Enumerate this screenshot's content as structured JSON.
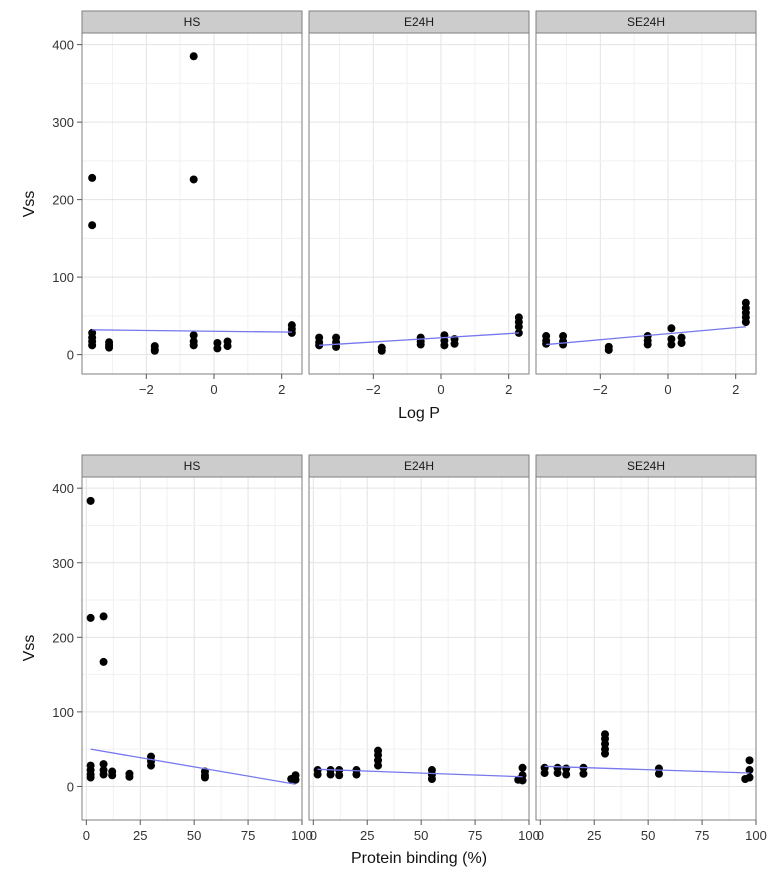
{
  "chart_data": [
    {
      "type": "scatter",
      "title": "",
      "xlabel": "Log P",
      "ylabel": "Vss",
      "xlim": [
        -3.9,
        2.6
      ],
      "ylim": [
        -25,
        415
      ],
      "x_ticks": [
        -2,
        0,
        2
      ],
      "y_ticks": [
        0,
        100,
        200,
        300,
        400
      ],
      "x_tick_labels": [
        "−2",
        "0",
        "2"
      ],
      "y_tick_labels": [
        "0",
        "100",
        "200",
        "300",
        "400"
      ],
      "grid": true,
      "fit_color": "#7777ee",
      "panels": [
        {
          "label": "HS",
          "points": [
            [
              -3.6,
              228
            ],
            [
              -3.6,
              167
            ],
            [
              -3.6,
              28
            ],
            [
              -3.6,
              22
            ],
            [
              -3.6,
              17
            ],
            [
              -3.6,
              12
            ],
            [
              -3.1,
              16
            ],
            [
              -3.1,
              12
            ],
            [
              -3.1,
              9
            ],
            [
              -1.75,
              11
            ],
            [
              -1.75,
              7
            ],
            [
              -1.75,
              5
            ],
            [
              -0.6,
              385
            ],
            [
              -0.6,
              226
            ],
            [
              -0.6,
              25
            ],
            [
              -0.6,
              17
            ],
            [
              -0.6,
              12
            ],
            [
              0.1,
              15
            ],
            [
              0.1,
              8
            ],
            [
              0.4,
              17
            ],
            [
              0.4,
              11
            ],
            [
              2.3,
              38
            ],
            [
              2.3,
              33
            ],
            [
              2.3,
              28
            ]
          ],
          "fit": [
            [
              -3.6,
              32
            ],
            [
              2.3,
              29
            ]
          ]
        },
        {
          "label": "E24H",
          "points": [
            [
              -3.6,
              22
            ],
            [
              -3.6,
              16
            ],
            [
              -3.6,
              12
            ],
            [
              -3.1,
              22
            ],
            [
              -3.1,
              16
            ],
            [
              -3.1,
              10
            ],
            [
              -1.75,
              9
            ],
            [
              -1.75,
              5
            ],
            [
              -0.6,
              22
            ],
            [
              -0.6,
              17
            ],
            [
              -0.6,
              13
            ],
            [
              0.1,
              25
            ],
            [
              0.1,
              18
            ],
            [
              0.1,
              12
            ],
            [
              0.4,
              20
            ],
            [
              0.4,
              14
            ],
            [
              2.3,
              48
            ],
            [
              2.3,
              42
            ],
            [
              2.3,
              36
            ],
            [
              2.3,
              28
            ]
          ],
          "fit": [
            [
              -3.6,
              12
            ],
            [
              2.3,
              28
            ]
          ]
        },
        {
          "label": "SE24H",
          "points": [
            [
              -3.6,
              24
            ],
            [
              -3.6,
              18
            ],
            [
              -3.6,
              14
            ],
            [
              -3.1,
              24
            ],
            [
              -3.1,
              17
            ],
            [
              -3.1,
              13
            ],
            [
              -1.75,
              10
            ],
            [
              -1.75,
              6
            ],
            [
              -0.6,
              24
            ],
            [
              -0.6,
              18
            ],
            [
              -0.6,
              13
            ],
            [
              0.1,
              34
            ],
            [
              0.1,
              20
            ],
            [
              0.1,
              13
            ],
            [
              0.4,
              22
            ],
            [
              0.4,
              15
            ],
            [
              2.3,
              67
            ],
            [
              2.3,
              60
            ],
            [
              2.3,
              54
            ],
            [
              2.3,
              48
            ],
            [
              2.3,
              42
            ]
          ],
          "fit": [
            [
              -3.6,
              13
            ],
            [
              2.3,
              36
            ]
          ]
        }
      ]
    },
    {
      "type": "scatter",
      "title": "",
      "xlabel": "Protein binding (%)",
      "ylabel": "Vss",
      "xlim": [
        -2,
        100
      ],
      "ylim": [
        -45,
        415
      ],
      "x_ticks": [
        0,
        25,
        50,
        75,
        100
      ],
      "y_ticks": [
        0,
        100,
        200,
        300,
        400
      ],
      "x_tick_labels": [
        "0",
        "25",
        "50",
        "75",
        "100"
      ],
      "y_tick_labels": [
        "0",
        "100",
        "200",
        "300",
        "400"
      ],
      "grid": true,
      "fit_color": "#7777ee",
      "panels": [
        {
          "label": "HS",
          "points": [
            [
              2,
              383
            ],
            [
              2,
              226
            ],
            [
              2,
              28
            ],
            [
              2,
              22
            ],
            [
              2,
              16
            ],
            [
              2,
              12
            ],
            [
              8,
              228
            ],
            [
              8,
              167
            ],
            [
              8,
              30
            ],
            [
              8,
              22
            ],
            [
              8,
              16
            ],
            [
              12,
              20
            ],
            [
              12,
              15
            ],
            [
              20,
              17
            ],
            [
              20,
              13
            ],
            [
              30,
              40
            ],
            [
              30,
              34
            ],
            [
              30,
              28
            ],
            [
              55,
              20
            ],
            [
              55,
              15
            ],
            [
              55,
              12
            ],
            [
              95,
              10
            ],
            [
              97,
              15
            ],
            [
              97,
              9
            ]
          ],
          "fit": [
            [
              2,
              50
            ],
            [
              97,
              3
            ]
          ]
        },
        {
          "label": "E24H",
          "points": [
            [
              2,
              22
            ],
            [
              2,
              16
            ],
            [
              8,
              22
            ],
            [
              8,
              16
            ],
            [
              12,
              22
            ],
            [
              12,
              15
            ],
            [
              20,
              22
            ],
            [
              20,
              16
            ],
            [
              30,
              48
            ],
            [
              30,
              42
            ],
            [
              30,
              35
            ],
            [
              30,
              28
            ],
            [
              55,
              22
            ],
            [
              55,
              16
            ],
            [
              55,
              10
            ],
            [
              95,
              9
            ],
            [
              97,
              25
            ],
            [
              97,
              15
            ],
            [
              97,
              8
            ]
          ],
          "fit": [
            [
              2,
              23
            ],
            [
              97,
              13
            ]
          ]
        },
        {
          "label": "SE24H",
          "points": [
            [
              2,
              25
            ],
            [
              2,
              18
            ],
            [
              8,
              25
            ],
            [
              8,
              18
            ],
            [
              12,
              24
            ],
            [
              12,
              16
            ],
            [
              20,
              25
            ],
            [
              20,
              17
            ],
            [
              30,
              70
            ],
            [
              30,
              64
            ],
            [
              30,
              57
            ],
            [
              30,
              50
            ],
            [
              30,
              44
            ],
            [
              55,
              24
            ],
            [
              55,
              17
            ],
            [
              95,
              10
            ],
            [
              97,
              35
            ],
            [
              97,
              22
            ],
            [
              97,
              12
            ]
          ],
          "fit": [
            [
              2,
              27
            ],
            [
              97,
              18
            ]
          ]
        }
      ]
    }
  ]
}
